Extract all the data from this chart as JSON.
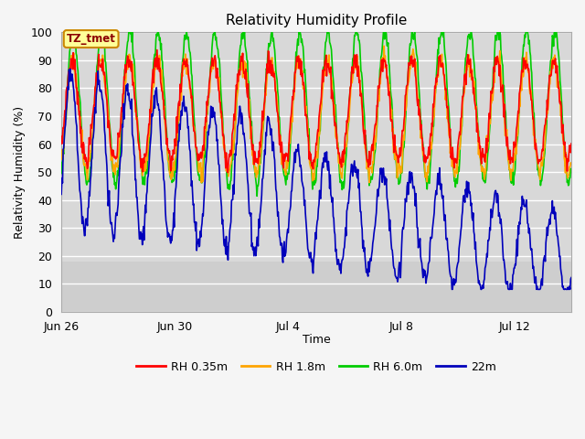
{
  "title": "Relativity Humidity Profile",
  "xlabel": "Time",
  "ylabel": "Relativity Humidity (%)",
  "ylim": [
    0,
    100
  ],
  "yticks": [
    0,
    10,
    20,
    30,
    40,
    50,
    60,
    70,
    80,
    90,
    100
  ],
  "xtick_labels": [
    "Jun 26",
    "Jun 30",
    "Jul 4",
    "Jul 8",
    "Jul 12"
  ],
  "tick_positions": [
    0,
    4,
    8,
    12,
    16
  ],
  "legend_labels": [
    "RH 0.35m",
    "RH 1.8m",
    "RH 6.0m",
    "22m"
  ],
  "legend_colors": [
    "#ff0000",
    "#ffa500",
    "#00cc00",
    "#0000bb"
  ],
  "annotation_text": "TZ_tmet",
  "annotation_bg": "#ffff99",
  "annotation_border": "#cc8800",
  "fig_bg": "#f5f5f5",
  "plot_bg": "#d8d8d8",
  "plot_bg_upper": "#e8e8e8",
  "grid_color": "#ffffff",
  "title_fontsize": 11,
  "label_fontsize": 9,
  "tick_fontsize": 9,
  "line_width": 1.2,
  "n_days": 18,
  "samples_per_day": 48,
  "xlim": [
    0,
    18
  ]
}
